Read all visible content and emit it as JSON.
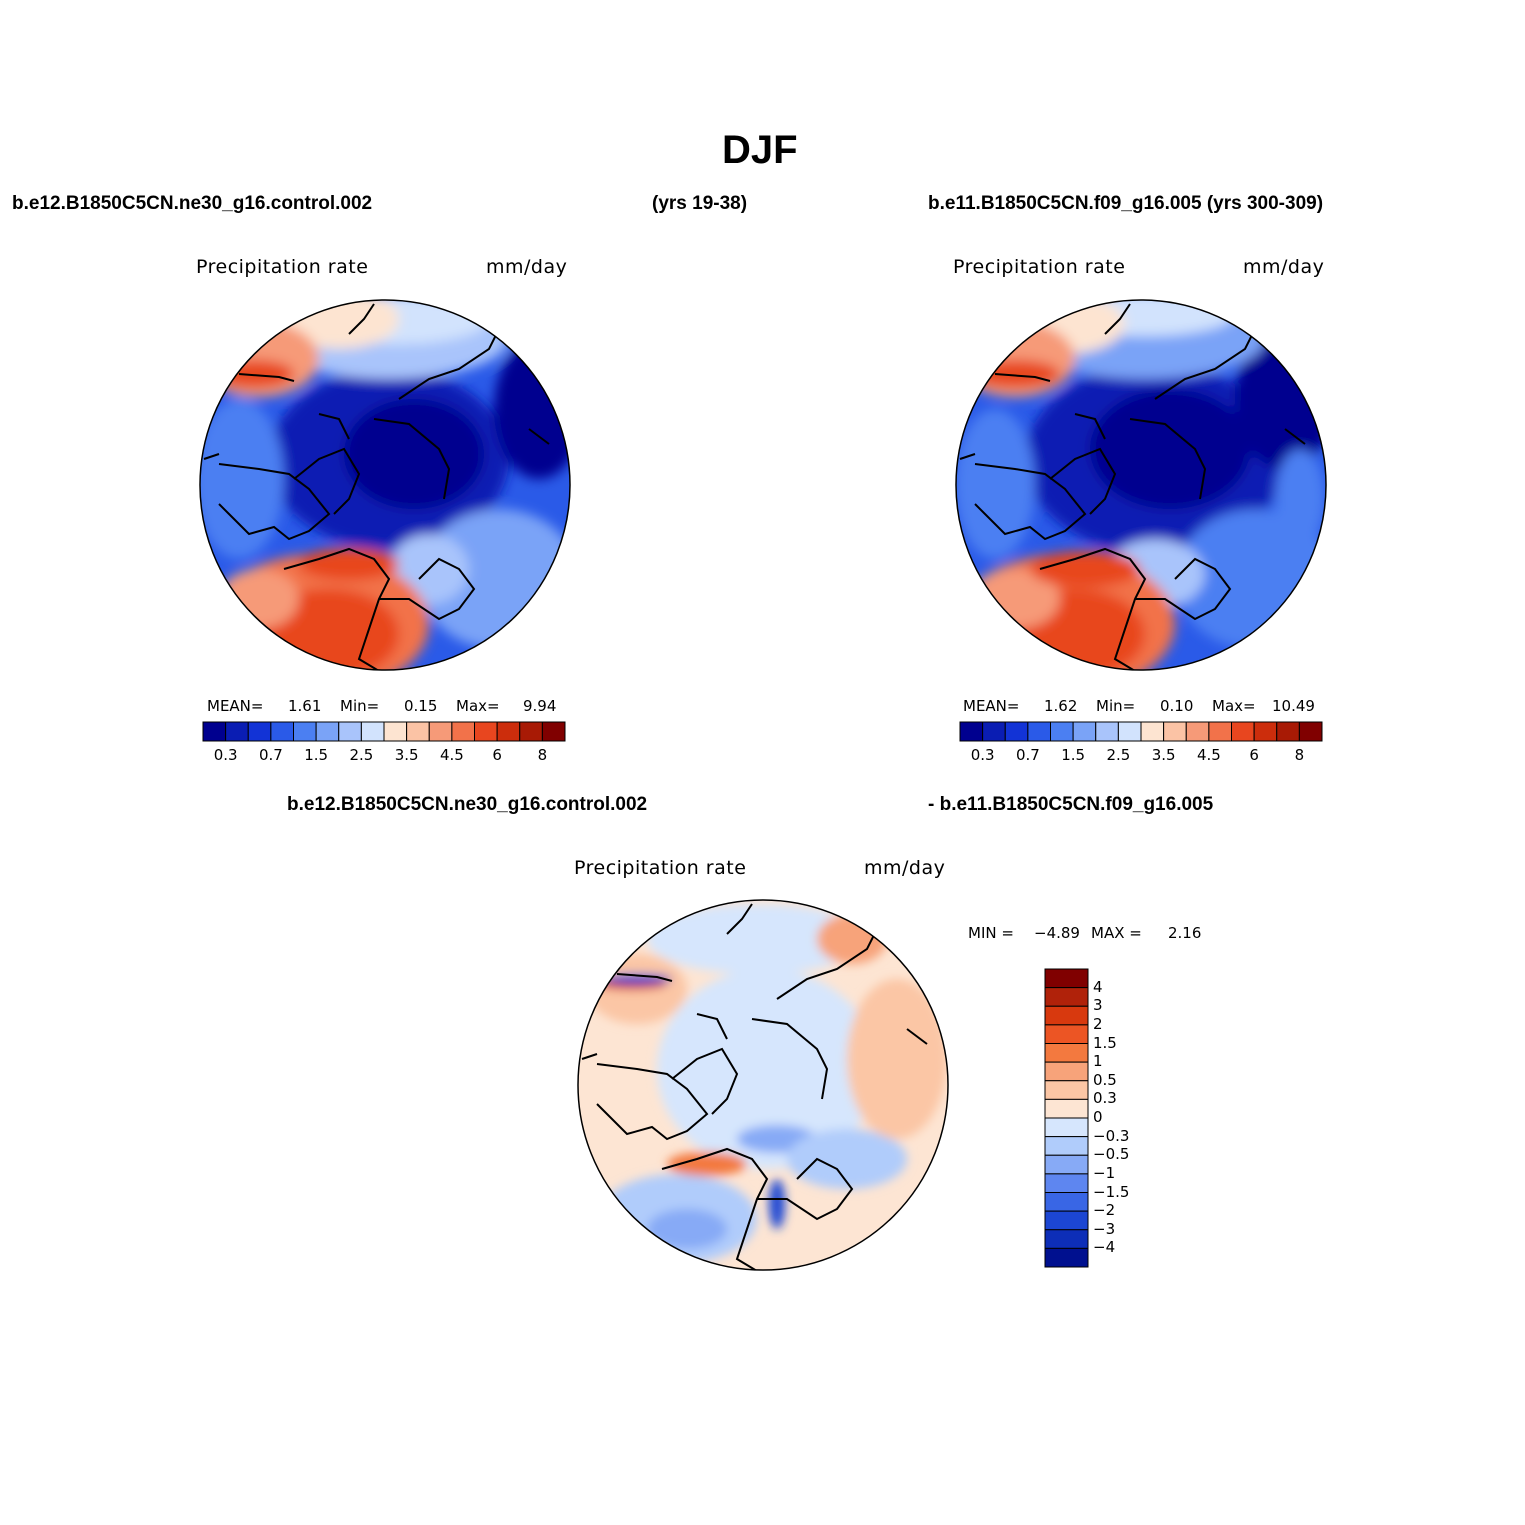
{
  "title": "DJF",
  "panels": {
    "left_case": "b.e12.B1850C5CN.ne30_g16.control.002",
    "left_years": "(yrs 19-38)",
    "right_case": "b.e11.B1850C5CN.f09_g16.005 (yrs 300-309)",
    "diff_case_a": "b.e12.B1850C5CN.ne30_g16.control.002",
    "diff_case_b": "- b.e11.B1850C5CN.f09_g16.005"
  },
  "maps": [
    {
      "id": "model-a",
      "variable": "Precipitation rate",
      "units": "mm/day",
      "stats": {
        "mean_label": "MEAN=",
        "mean": "1.61",
        "min_label": "Min=",
        "min": "0.15",
        "max_label": "Max=",
        "max": "9.94"
      }
    },
    {
      "id": "model-b",
      "variable": "Precipitation rate",
      "units": "mm/day",
      "stats": {
        "mean_label": "MEAN=",
        "mean": "1.62",
        "min_label": "Min=",
        "min": "0.10",
        "max_label": "Max=",
        "max": "10.49"
      }
    },
    {
      "id": "difference",
      "variable": "Precipitation rate",
      "units": "mm/day",
      "minmax": {
        "min_label": "MIN =",
        "min": "−4.89",
        "max_label": "MAX =",
        "max": "2.16"
      }
    }
  ],
  "colorbar_main": {
    "colors": [
      "#00008f",
      "#0a1db3",
      "#1233d6",
      "#2a5ae8",
      "#4b7ff2",
      "#7aa3f7",
      "#a9c4fb",
      "#d2e3fd",
      "#fde4d1",
      "#fbc3a5",
      "#f69a78",
      "#f2724a",
      "#e8461f",
      "#cc2d0c",
      "#a81a05",
      "#800000"
    ],
    "labels": [
      "0.3",
      "0.7",
      "1.5",
      "2.5",
      "3.5",
      "4.5",
      "6",
      "8"
    ]
  },
  "colorbar_diff": {
    "colors": [
      "#800000",
      "#b0220a",
      "#d8390e",
      "#ec5524",
      "#f3793f",
      "#f7a37a",
      "#fbc6a5",
      "#fde5d3",
      "#d6e6fd",
      "#b0ccfb",
      "#87aaf6",
      "#5e86f0",
      "#3966e5",
      "#1c46d3",
      "#0d2eb8",
      "#00108f"
    ],
    "labels": [
      "4",
      "3",
      "2",
      "1.5",
      "1",
      "0.5",
      "0.3",
      "0",
      "−0.3",
      "−0.5",
      "−1",
      "−1.5",
      "−2",
      "−3",
      "−4"
    ]
  },
  "chart_data": [
    {
      "type": "heatmap",
      "title": "Precipitation rate",
      "units": "mm/day",
      "projection": "north-polar-stereographic",
      "levels": [
        0.3,
        0.5,
        0.7,
        1,
        1.5,
        2,
        2.5,
        3,
        3.5,
        4,
        4.5,
        5,
        6,
        7,
        8
      ],
      "stats": {
        "mean": 1.61,
        "min": 0.15,
        "max": 9.94
      }
    },
    {
      "type": "heatmap",
      "title": "Precipitation rate",
      "units": "mm/day",
      "projection": "north-polar-stereographic",
      "levels": [
        0.3,
        0.5,
        0.7,
        1,
        1.5,
        2,
        2.5,
        3,
        3.5,
        4,
        4.5,
        5,
        6,
        7,
        8
      ],
      "stats": {
        "mean": 1.62,
        "min": 0.1,
        "max": 10.49
      }
    },
    {
      "type": "heatmap",
      "title": "Precipitation rate",
      "units": "mm/day",
      "projection": "north-polar-stereographic",
      "levels": [
        -4,
        -3,
        -2,
        -1.5,
        -1,
        -0.5,
        -0.3,
        0,
        0.3,
        0.5,
        1,
        1.5,
        2,
        3,
        4
      ],
      "stats": {
        "min": -4.89,
        "max": 2.16
      }
    }
  ]
}
